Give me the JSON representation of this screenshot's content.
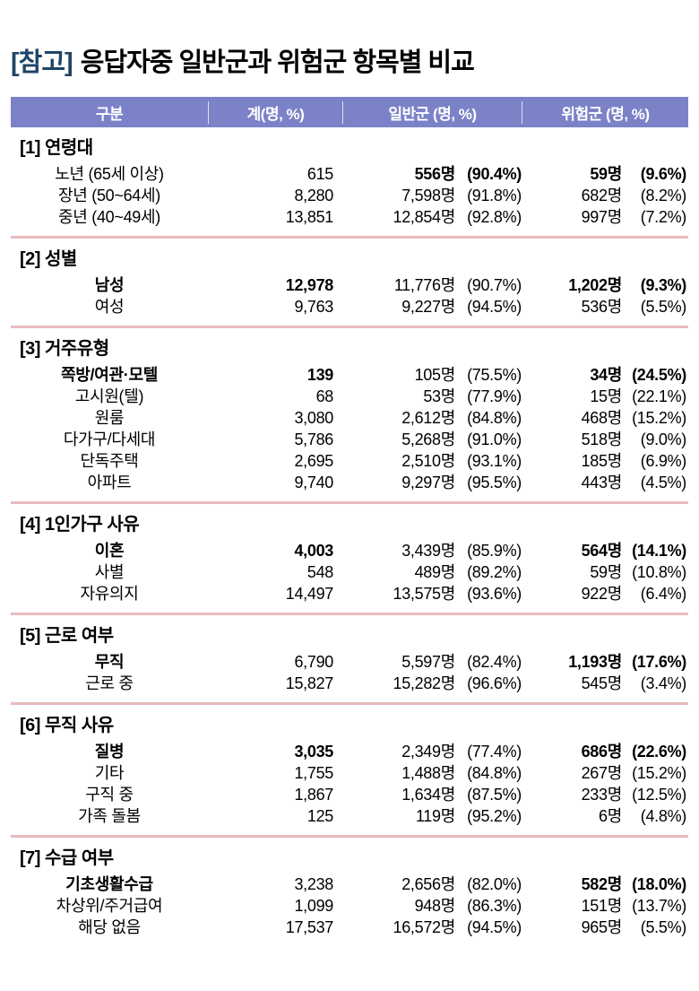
{
  "colors": {
    "header_bg": "#7c82c8",
    "title_tag_color": "#1f4566",
    "separator": "#e9bcbe",
    "header_text": "#ffffff"
  },
  "title": {
    "tag": "[참고]",
    "text": "응답자중 일반군과 위험군 항목별 비교"
  },
  "table": {
    "headers": [
      "구분",
      "계(명, %)",
      "일반군 (명, %)",
      "위험군 (명, %)"
    ],
    "sections": [
      {
        "heading": "[1] 연령대",
        "rows": [
          {
            "label": "노년 (65세 이상)",
            "total": "615",
            "general": [
              "556명",
              "(90.4%)"
            ],
            "risk": [
              "59명",
              "(9.6%)"
            ],
            "bold": [
              "general",
              "risk"
            ]
          },
          {
            "label": "장년 (50~64세)",
            "total": "8,280",
            "general": [
              "7,598명",
              "(91.8%)"
            ],
            "risk": [
              "682명",
              "(8.2%)"
            ],
            "bold": []
          },
          {
            "label": "중년 (40~49세)",
            "total": "13,851",
            "general": [
              "12,854명",
              "(92.8%)"
            ],
            "risk": [
              "997명",
              "(7.2%)"
            ],
            "bold": []
          }
        ]
      },
      {
        "heading": "[2] 성별",
        "rows": [
          {
            "label": "남성",
            "total": "12,978",
            "general": [
              "11,776명",
              "(90.7%)"
            ],
            "risk": [
              "1,202명",
              "(9.3%)"
            ],
            "bold": [
              "label",
              "total",
              "risk"
            ]
          },
          {
            "label": "여성",
            "total": "9,763",
            "general": [
              "9,227명",
              "(94.5%)"
            ],
            "risk": [
              "536명",
              "(5.5%)"
            ],
            "bold": []
          }
        ]
      },
      {
        "heading": "[3] 거주유형",
        "rows": [
          {
            "label": "쪽방/여관·모텔",
            "total": "139",
            "general": [
              "105명",
              "(75.5%)"
            ],
            "risk": [
              "34명",
              "(24.5%)"
            ],
            "bold": [
              "label",
              "total",
              "risk"
            ]
          },
          {
            "label": "고시원(텔)",
            "total": "68",
            "general": [
              "53명",
              "(77.9%)"
            ],
            "risk": [
              "15명",
              "(22.1%)"
            ],
            "bold": []
          },
          {
            "label": "원룸",
            "total": "3,080",
            "general": [
              "2,612명",
              "(84.8%)"
            ],
            "risk": [
              "468명",
              "(15.2%)"
            ],
            "bold": []
          },
          {
            "label": "다가구/다세대",
            "total": "5,786",
            "general": [
              "5,268명",
              "(91.0%)"
            ],
            "risk": [
              "518명",
              "(9.0%)"
            ],
            "bold": []
          },
          {
            "label": "단독주택",
            "total": "2,695",
            "general": [
              "2,510명",
              "(93.1%)"
            ],
            "risk": [
              "185명",
              "(6.9%)"
            ],
            "bold": []
          },
          {
            "label": "아파트",
            "total": "9,740",
            "general": [
              "9,297명",
              "(95.5%)"
            ],
            "risk": [
              "443명",
              "(4.5%)"
            ],
            "bold": []
          }
        ]
      },
      {
        "heading": "[4] 1인가구 사유",
        "rows": [
          {
            "label": "이혼",
            "total": "4,003",
            "general": [
              "3,439명",
              "(85.9%)"
            ],
            "risk": [
              "564명",
              "(14.1%)"
            ],
            "bold": [
              "label",
              "total",
              "risk"
            ]
          },
          {
            "label": "사별",
            "total": "548",
            "general": [
              "489명",
              "(89.2%)"
            ],
            "risk": [
              "59명",
              "(10.8%)"
            ],
            "bold": []
          },
          {
            "label": "자유의지",
            "total": "14,497",
            "general": [
              "13,575명",
              "(93.6%)"
            ],
            "risk": [
              "922명",
              "(6.4%)"
            ],
            "bold": []
          }
        ]
      },
      {
        "heading": "[5] 근로 여부",
        "rows": [
          {
            "label": "무직",
            "total": "6,790",
            "general": [
              "5,597명",
              "(82.4%)"
            ],
            "risk": [
              "1,193명",
              "(17.6%)"
            ],
            "bold": [
              "label",
              "risk"
            ]
          },
          {
            "label": "근로 중",
            "total": "15,827",
            "general": [
              "15,282명",
              "(96.6%)"
            ],
            "risk": [
              "545명",
              "(3.4%)"
            ],
            "bold": []
          }
        ]
      },
      {
        "heading": "[6] 무직 사유",
        "rows": [
          {
            "label": "질병",
            "total": "3,035",
            "general": [
              "2,349명",
              "(77.4%)"
            ],
            "risk": [
              "686명",
              "(22.6%)"
            ],
            "bold": [
              "label",
              "total",
              "risk"
            ]
          },
          {
            "label": "기타",
            "total": "1,755",
            "general": [
              "1,488명",
              "(84.8%)"
            ],
            "risk": [
              "267명",
              "(15.2%)"
            ],
            "bold": []
          },
          {
            "label": "구직 중",
            "total": "1,867",
            "general": [
              "1,634명",
              "(87.5%)"
            ],
            "risk": [
              "233명",
              "(12.5%)"
            ],
            "bold": []
          },
          {
            "label": "가족 돌봄",
            "total": "125",
            "general": [
              "119명",
              "(95.2%)"
            ],
            "risk": [
              "6명",
              "(4.8%)"
            ],
            "bold": []
          }
        ]
      },
      {
        "heading": "[7] 수급 여부",
        "rows": [
          {
            "label": "기초생활수급",
            "total": "3,238",
            "general": [
              "2,656명",
              "(82.0%)"
            ],
            "risk": [
              "582명",
              "(18.0%)"
            ],
            "bold": [
              "label",
              "risk"
            ]
          },
          {
            "label": "차상위/주거급여",
            "total": "1,099",
            "general": [
              "948명",
              "(86.3%)"
            ],
            "risk": [
              "151명",
              "(13.7%)"
            ],
            "bold": []
          },
          {
            "label": "해당 없음",
            "total": "17,537",
            "general": [
              "16,572명",
              "(94.5%)"
            ],
            "risk": [
              "965명",
              "(5.5%)"
            ],
            "bold": []
          }
        ]
      }
    ]
  }
}
